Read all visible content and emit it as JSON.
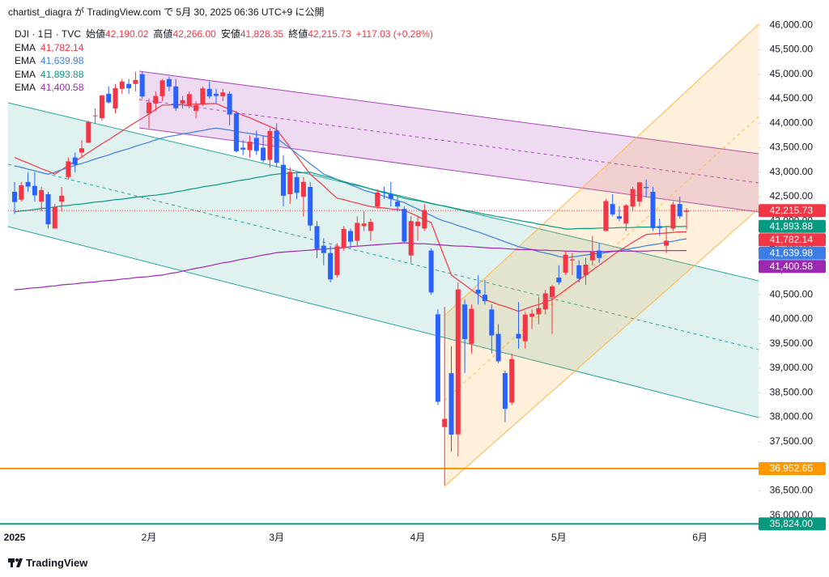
{
  "header": "chartist_diagra が TradingView.com で 5月 30, 2025 06:36 UTC+9 に公開",
  "footer": "TradingView",
  "chart_data": {
    "type": "candlestick",
    "symbol": "DJI · 1日 · TVC",
    "legend": [
      {
        "name": "始値",
        "value": "42,190.02"
      },
      {
        "name": "高値",
        "value": "42,266.00"
      },
      {
        "name": "安値",
        "value": "41,828.35"
      },
      {
        "name": "終値",
        "value": "42,215.73"
      }
    ],
    "change": "+117.03 (+0.28%)",
    "up_color": "#f23645",
    "down_color": "#2962ff",
    "categories": [
      "2025",
      null,
      null,
      null,
      null,
      null,
      null,
      null,
      null,
      null,
      null,
      null,
      null,
      null,
      null,
      null,
      null,
      null,
      null,
      null,
      "2月",
      null,
      null,
      null,
      null,
      null,
      null,
      null,
      null,
      null,
      null,
      null,
      null,
      null,
      null,
      null,
      null,
      null,
      null,
      "3月",
      null,
      null,
      null,
      null,
      null,
      null,
      null,
      null,
      null,
      null,
      null,
      null,
      null,
      null,
      null,
      null,
      null,
      null,
      null,
      null,
      "4月",
      null,
      null,
      null,
      null,
      null,
      null,
      null,
      null,
      null,
      null,
      null,
      null,
      null,
      null,
      null,
      null,
      null,
      null,
      null,
      null,
      "5月",
      null,
      null,
      null,
      null,
      null,
      null,
      null,
      null,
      null,
      null,
      null,
      null,
      null,
      null,
      null,
      null,
      null,
      null,
      null,
      null,
      "6月"
    ],
    "open": [
      42600,
      42440,
      42800,
      42720,
      42400,
      42550,
      41850,
      42400,
      42900,
      43300,
      43400,
      43600,
      44150,
      44100,
      44600,
      44300,
      44700,
      44800,
      44800,
      45000,
      44200,
      44400,
      44550,
      44900,
      44750,
      44400,
      44350,
      44250,
      44400,
      44700,
      44600,
      44550,
      44600,
      44200,
      43500,
      43450,
      43700,
      43500,
      43250,
      43850,
      43150,
      42550,
      42900,
      42500,
      42700,
      41900,
      41500,
      41350,
      40900,
      41450,
      41800,
      41600,
      41900,
      41800,
      42300,
      42600,
      42550,
      42400,
      42250,
      41300,
      41900,
      41850,
      41400,
      40100,
      37800,
      38900,
      37650,
      40300,
      39500,
      40600,
      40500,
      40200,
      39700,
      38900,
      38300,
      39700,
      39550,
      40050,
      40100,
      40200,
      40450,
      40850,
      40950,
      41200,
      41100,
      40900,
      41200,
      41400,
      41800,
      42350,
      42100,
      41950,
      42300,
      42400,
      42700,
      42600,
      41900,
      41500,
      41850,
      42350,
      42190.02,
      null,
      null
    ],
    "high": [
      42800,
      42800,
      43000,
      43000,
      42700,
      42600,
      42350,
      42700,
      43300,
      43400,
      43650,
      44050,
      44300,
      44580,
      44750,
      44800,
      44900,
      44900,
      45050,
      45050,
      44500,
      44650,
      44900,
      44950,
      44900,
      44550,
      44650,
      44450,
      44750,
      44850,
      44700,
      44700,
      44650,
      44250,
      43650,
      43750,
      43850,
      43750,
      43900,
      44000,
      43350,
      43100,
      43000,
      42900,
      42800,
      42000,
      41650,
      41500,
      41550,
      41900,
      41850,
      42100,
      42200,
      42050,
      42650,
      42700,
      42800,
      42500,
      42300,
      42100,
      42100,
      42350,
      41450,
      40200,
      40250,
      39450,
      40750,
      40400,
      40300,
      40900,
      40800,
      40300,
      39900,
      38950,
      39300,
      40350,
      40150,
      40200,
      40450,
      40600,
      40700,
      41100,
      41400,
      41350,
      41200,
      41250,
      41700,
      41550,
      42450,
      42550,
      42300,
      42350,
      42700,
      42800,
      42850,
      42700,
      42050,
      41900,
      42400,
      42500,
      42266,
      null,
      null
    ],
    "low": [
      42150,
      42400,
      42600,
      42400,
      42200,
      41850,
      41850,
      42200,
      42850,
      43000,
      43300,
      43600,
      44000,
      44050,
      44400,
      44200,
      44600,
      44600,
      44650,
      44500,
      43900,
      44250,
      44450,
      44650,
      44250,
      44300,
      44300,
      44100,
      44350,
      44500,
      44400,
      44450,
      43950,
      43400,
      43350,
      43300,
      43350,
      43200,
      43100,
      43100,
      42300,
      42350,
      42450,
      42100,
      41800,
      41250,
      41100,
      40750,
      40850,
      41400,
      41450,
      41500,
      41800,
      41600,
      42250,
      42450,
      42300,
      42200,
      41550,
      41150,
      41600,
      41800,
      40500,
      38250,
      36610,
      37300,
      37200,
      38900,
      39300,
      40300,
      40300,
      39300,
      39100,
      37900,
      38250,
      39400,
      39400,
      39800,
      39900,
      40100,
      39700,
      40700,
      40900,
      40900,
      40750,
      40700,
      41100,
      41150,
      41800,
      42100,
      42000,
      41800,
      42200,
      42300,
      42500,
      41800,
      41700,
      41350,
      41800,
      42050,
      41828.35,
      null,
      null
    ],
    "close": [
      42392,
      42732,
      42706,
      42528,
      42635,
      41938,
      42297,
      42518,
      43221,
      43153,
      43488,
      44025,
      44157,
      44565,
      44424,
      44714,
      44850,
      44714,
      44882,
      44545,
      44421,
      44556,
      44873,
      44747,
      44303,
      44470,
      44593,
      44368,
      44711,
      44546,
      44556,
      44627,
      44176,
      43428,
      43461,
      43621,
      43433,
      43240,
      43841,
      43191,
      42520,
      43006,
      42579,
      42802,
      41912,
      41433,
      41350,
      40813,
      41488,
      41841,
      41581,
      41965,
      41953,
      41985,
      42583,
      42588,
      42455,
      42300,
      41584,
      42002,
      41989,
      42226,
      40546,
      38315,
      37966,
      37646,
      40608,
      39594,
      40213,
      40525,
      40369,
      39669,
      39142,
      38170,
      39187,
      39607,
      40093,
      40113,
      40228,
      40527,
      40669,
      40753,
      41317,
      41219,
      40829,
      41114,
      41368,
      41249,
      42410,
      42140,
      42051,
      42323,
      42655,
      42792,
      42677,
      41860,
      41859,
      41603,
      42343,
      42098,
      42215.73,
      null,
      null
    ],
    "series": [
      {
        "name": "EMA",
        "color": "#f23645",
        "last": {
          "value": 41782.14,
          "label": "41,782.14"
        },
        "values": [
          43300,
          43240,
          43190,
          43130,
          43070,
          43020,
          42960,
          43050,
          43140,
          43220,
          43310,
          43400,
          43490,
          43580,
          43660,
          43750,
          43840,
          43930,
          44020,
          44100,
          44190,
          44280,
          44370,
          44370,
          44380,
          44380,
          44380,
          44390,
          44390,
          44400,
          44400,
          44340,
          44280,
          44220,
          44160,
          44110,
          44050,
          43990,
          43930,
          43870,
          43690,
          43510,
          43330,
          43140,
          42960,
          42840,
          42720,
          42590,
          42470,
          42440,
          42400,
          42370,
          42330,
          42300,
          42280,
          42270,
          42250,
          42240,
          42220,
          42160,
          42100,
          42030,
          41970,
          41610,
          41260,
          40900,
          40800,
          40700,
          40600,
          40500,
          40400,
          40350,
          40300,
          40260,
          40210,
          40160,
          40210,
          40260,
          40300,
          40350,
          40400,
          40500,
          40600,
          40700,
          40800,
          40900,
          41000,
          41100,
          41200,
          41300,
          41400,
          41480,
          41570,
          41650,
          41730,
          41740,
          41750,
          41760,
          41770,
          41780,
          41782.14,
          null,
          null
        ]
      },
      {
        "name": "EMA",
        "color": "#3d7ee6",
        "last": {
          "value": 41639.98,
          "label": "41,639.98"
        },
        "values": [
          43130,
          43100,
          43060,
          43030,
          42990,
          42960,
          43000,
          43050,
          43090,
          43140,
          43180,
          43220,
          43270,
          43310,
          43350,
          43400,
          43440,
          43480,
          43530,
          43570,
          43610,
          43660,
          43700,
          43730,
          43750,
          43780,
          43800,
          43830,
          43850,
          43880,
          43900,
          43880,
          43860,
          43830,
          43810,
          43790,
          43770,
          43740,
          43720,
          43700,
          43590,
          43490,
          43380,
          43280,
          43170,
          43070,
          42960,
          42910,
          42850,
          42800,
          42740,
          42690,
          42630,
          42590,
          42550,
          42510,
          42460,
          42420,
          42380,
          42310,
          42250,
          42180,
          42120,
          42050,
          42000,
          41960,
          41910,
          41870,
          41820,
          41780,
          41730,
          41680,
          41630,
          41580,
          41530,
          41480,
          41450,
          41420,
          41380,
          41350,
          41320,
          41280,
          41250,
          41270,
          41290,
          41310,
          41330,
          41340,
          41360,
          41380,
          41400,
          41420,
          41450,
          41470,
          41500,
          41520,
          41540,
          41570,
          41590,
          41620,
          41639.98,
          null,
          null
        ]
      },
      {
        "name": "EMA",
        "color": "#089981",
        "last": {
          "value": 41893.88,
          "label": "41,893.88"
        },
        "values": [
          42190,
          42210,
          42220,
          42240,
          42260,
          42270,
          42290,
          42310,
          42320,
          42340,
          42350,
          42370,
          42390,
          42400,
          42420,
          42440,
          42450,
          42470,
          42490,
          42500,
          42520,
          42530,
          42550,
          42570,
          42600,
          42620,
          42650,
          42670,
          42700,
          42720,
          42740,
          42770,
          42790,
          42820,
          42840,
          42860,
          42890,
          42910,
          42940,
          42960,
          42970,
          42980,
          42990,
          42990,
          43000,
          42960,
          42920,
          42890,
          42850,
          42810,
          42770,
          42740,
          42700,
          42660,
          42620,
          42580,
          42550,
          42510,
          42470,
          42440,
          42420,
          42390,
          42360,
          42330,
          42310,
          42280,
          42250,
          42220,
          42200,
          42170,
          42140,
          42120,
          42090,
          42070,
          42040,
          42020,
          41990,
          41970,
          41940,
          41920,
          41890,
          41870,
          41840,
          41840,
          41850,
          41850,
          41850,
          41860,
          41860,
          41860,
          41870,
          41870,
          41870,
          41880,
          41880,
          41880,
          41880,
          41890,
          41890,
          41890,
          41893.88,
          null,
          null
        ]
      },
      {
        "name": "EMA",
        "color": "#9c27b0",
        "last": {
          "value": 41400.58,
          "label": "41,400.58"
        },
        "values": [
          40600,
          40610,
          40630,
          40640,
          40650,
          40670,
          40680,
          40700,
          40710,
          40720,
          40740,
          40750,
          40760,
          40780,
          40790,
          40800,
          40820,
          40830,
          40850,
          40860,
          40870,
          40890,
          40900,
          40930,
          40950,
          40980,
          41010,
          41040,
          41060,
          41090,
          41120,
          41150,
          41170,
          41200,
          41230,
          41250,
          41280,
          41310,
          41330,
          41360,
          41370,
          41380,
          41390,
          41400,
          41410,
          41420,
          41430,
          41440,
          41450,
          41460,
          41480,
          41490,
          41500,
          41510,
          41520,
          41530,
          41540,
          41550,
          41560,
          41550,
          41540,
          41540,
          41530,
          41520,
          41510,
          41500,
          41490,
          41490,
          41480,
          41470,
          41460,
          41450,
          41450,
          41440,
          41430,
          41420,
          41420,
          41420,
          41410,
          41410,
          41400,
          41400,
          41390,
          41390,
          41380,
          41380,
          41380,
          41380,
          41380,
          41390,
          41390,
          41390,
          41390,
          41390,
          41390,
          41400,
          41400,
          41400,
          41400,
          41400,
          41400.58,
          null,
          null
        ]
      }
    ],
    "price_lines": [
      {
        "value": 42215.73,
        "label": "42,215.73",
        "color": "#f23645",
        "style": "dotted"
      },
      {
        "value": 36952.65,
        "label": "36,952.65",
        "color": "#ff9800",
        "style": "solid"
      },
      {
        "value": 35824,
        "label": "35,824.00",
        "color": "#089981",
        "style": "solid"
      }
    ],
    "ylim": [
      35780,
      46150
    ],
    "yticks": [
      {
        "value": 36000,
        "label": "36,000.00"
      },
      {
        "value": 36500,
        "label": "36,500.00"
      },
      {
        "value": 37000,
        "label": "37,000.00"
      },
      {
        "value": 37500,
        "label": "37,500.00"
      },
      {
        "value": 38000,
        "label": "38,000.00"
      },
      {
        "value": 38500,
        "label": "38,500.00"
      },
      {
        "value": 39000,
        "label": "39,000.00"
      },
      {
        "value": 39500,
        "label": "39,500.00"
      },
      {
        "value": 40000,
        "label": "40,000.00"
      },
      {
        "value": 40500,
        "label": "40,500.00"
      },
      {
        "value": 41000,
        "label": "41,000.00"
      },
      {
        "value": 41500,
        "label": "41,500.00"
      },
      {
        "value": 42000,
        "label": "42,000.00"
      },
      {
        "value": 42500,
        "label": "42,500.00"
      },
      {
        "value": 43000,
        "label": "43,000.00"
      },
      {
        "value": 43500,
        "label": "43,500.00"
      },
      {
        "value": 44000,
        "label": "44,000.00"
      },
      {
        "value": 44500,
        "label": "44,500.00"
      },
      {
        "value": 45000,
        "label": "45,000.00"
      },
      {
        "value": 45500,
        "label": "45,500.00"
      },
      {
        "value": 46000,
        "label": "46,000.00"
      }
    ]
  }
}
